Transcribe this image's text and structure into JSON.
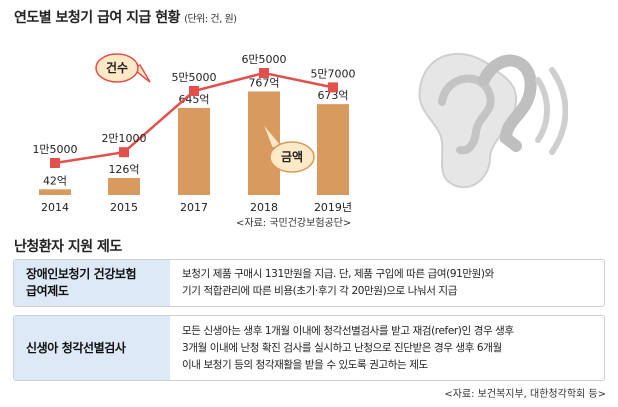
{
  "header": {
    "title": "연도별 보청기 급여 지급 현황",
    "unit": "(단위: 건, 원)"
  },
  "chart_data": {
    "type": "bar+line",
    "categories": [
      "2014",
      "2015",
      "2017",
      "2018",
      "2019년"
    ],
    "bars": {
      "name": "금액",
      "values": [
        42,
        126,
        645,
        767,
        673
      ],
      "labels": [
        "42억",
        "126억",
        "645억",
        "767억",
        "673억"
      ]
    },
    "line": {
      "name": "건수",
      "values": [
        15000,
        21000,
        55000,
        65000,
        57000
      ],
      "labels": [
        "1만5000",
        "2만1000",
        "5만5000",
        "6만5000",
        "5만7000"
      ]
    },
    "colors": {
      "bar": "#d89a5e",
      "line": "#e0514b",
      "bubble_fill": "#ffe9c6"
    }
  },
  "source1": "<자료: 국민건강보험공단>",
  "section": {
    "title": "난청환자 지원 제도",
    "rows": [
      {
        "label_line1": "장애인보청기 건강보험",
        "label_line2": "급여제도",
        "line1": "보청기 제품 구매시 131만원을 지급. 단, 제품 구입에 따른 급여(91만원)와",
        "line2": "기기 적합관리에 따른 비용(초기·후기 각 20만원)으로 나눠서 지급"
      },
      {
        "label": "신생아 청각선별검사",
        "line1": "모든 신생아는 생후 1개월 이내에 청각선별검사를 받고 재검(refer)인 경우 생후",
        "line2": "3개월 이내에 난청 확진 검사를 실시하고 난청으로 진단받은 경우 생후 6개월",
        "line3": "이내 보청기 등의 청각재활을 받을 수 있도록 권고하는 제도"
      }
    ]
  },
  "source2": "<자료: 보건복지부, 대한청각학회 등>"
}
